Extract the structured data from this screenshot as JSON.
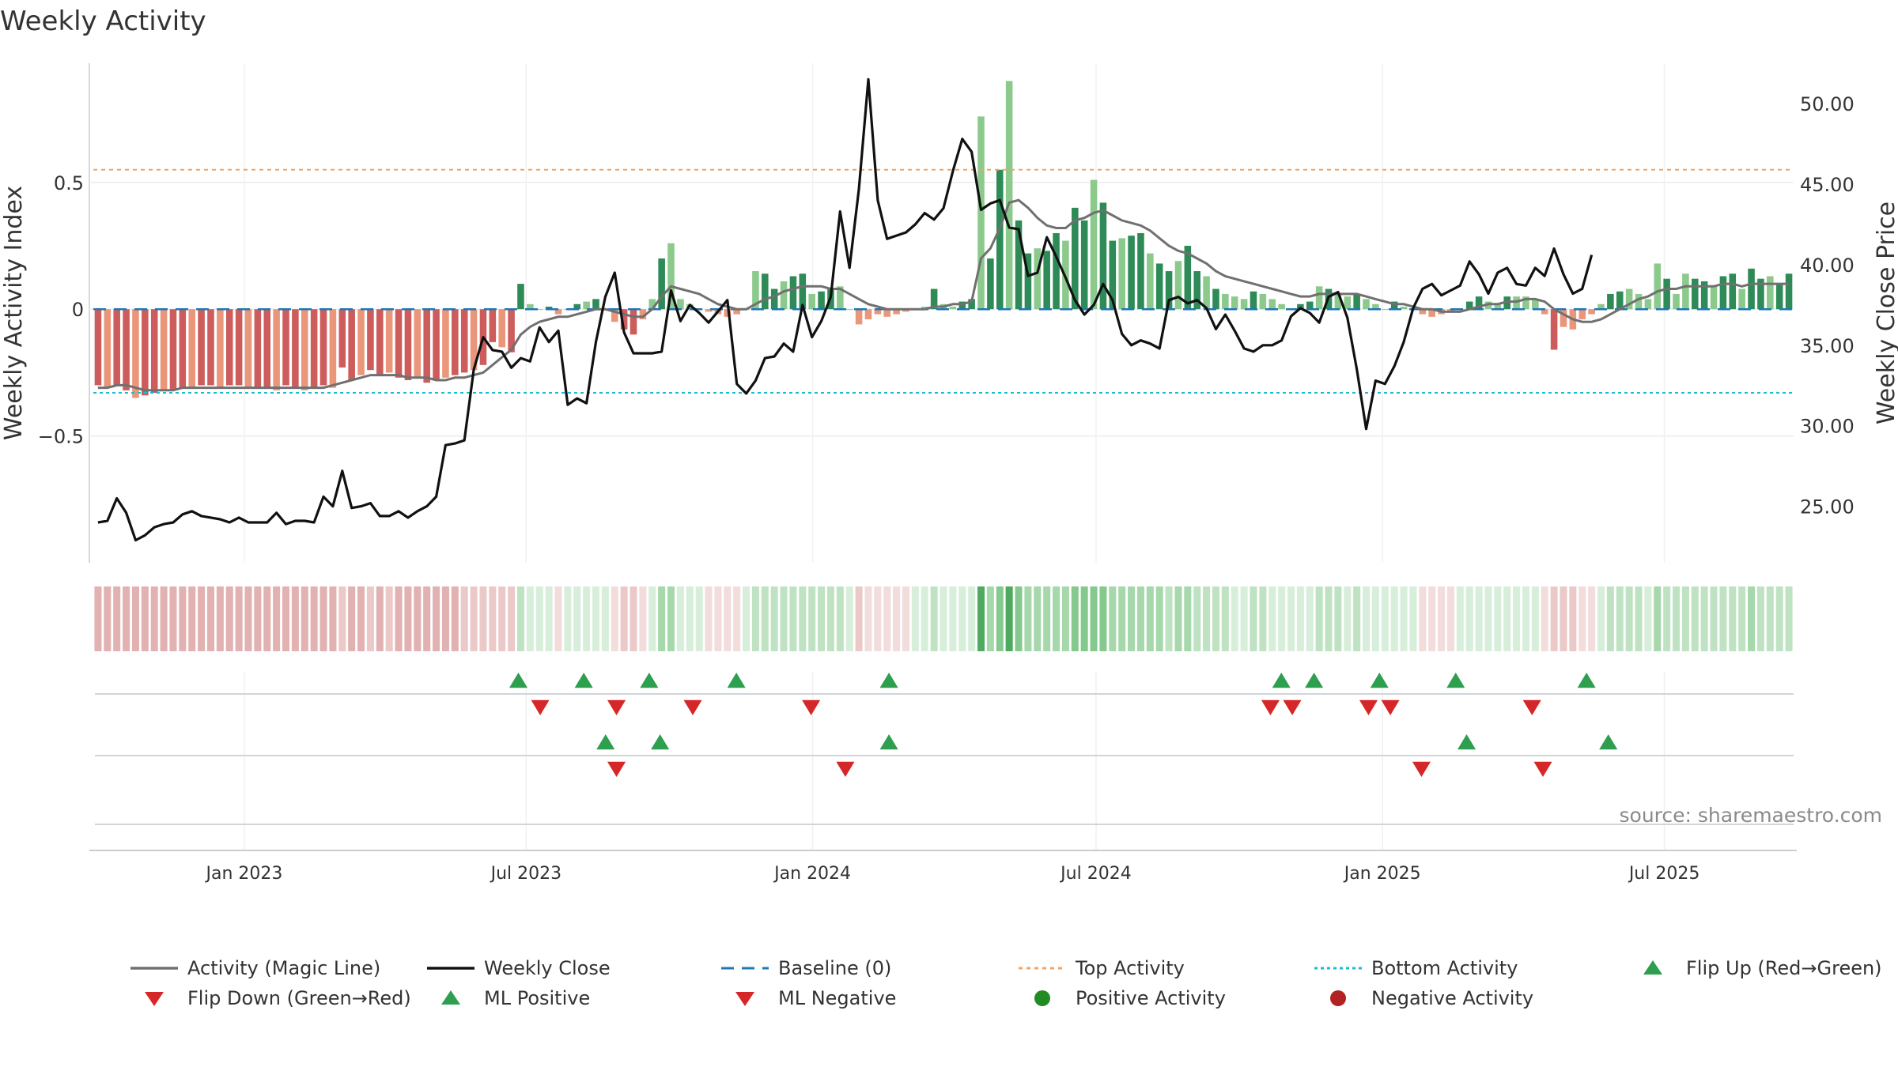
{
  "chart_data": {
    "type": "bar",
    "title": "Weekly Activity",
    "ylabel_left": "Weekly Activity Index",
    "ylabel_right": "Weekly Close Price",
    "source": "source: sharemaestro.com",
    "left_axis": {
      "ylim": [
        -1.0,
        0.97
      ],
      "ticks": [
        -0.5,
        0,
        0.5
      ],
      "tick_labels": [
        "−0.5",
        "0",
        "0.5"
      ]
    },
    "right_axis": {
      "ylim": [
        21.5,
        52.5
      ],
      "ticks": [
        25,
        30,
        35,
        40,
        45,
        50
      ],
      "tick_labels": [
        "25.00",
        "30.00",
        "35.00",
        "40.00",
        "45.00",
        "50.00"
      ]
    },
    "x_axis": {
      "start": "2022-09-26",
      "end": "2025-09-22",
      "ticks": [
        "2023-01-01",
        "2023-07-01",
        "2024-01-01",
        "2024-07-01",
        "2025-01-01",
        "2025-07-01"
      ],
      "tick_labels": [
        "Jan 2023",
        "Jul 2023",
        "Jan 2024",
        "Jul 2024",
        "Jan 2025",
        "Jul 2025"
      ]
    },
    "reference_lines": {
      "baseline": 0,
      "top_activity": 0.55,
      "bottom_activity": -0.33
    },
    "weeks": {
      "start": "2022-09-26",
      "activity": [
        -0.3,
        -0.31,
        -0.3,
        -0.32,
        -0.35,
        -0.34,
        -0.33,
        -0.32,
        -0.32,
        -0.31,
        -0.31,
        -0.3,
        -0.3,
        -0.31,
        -0.3,
        -0.3,
        -0.31,
        -0.31,
        -0.31,
        -0.32,
        -0.3,
        -0.31,
        -0.32,
        -0.31,
        -0.3,
        -0.31,
        -0.23,
        -0.28,
        -0.26,
        -0.24,
        -0.26,
        -0.25,
        -0.27,
        -0.28,
        -0.27,
        -0.29,
        -0.28,
        -0.27,
        -0.26,
        -0.25,
        -0.24,
        -0.22,
        -0.13,
        -0.15,
        -0.17,
        0.1,
        0.02,
        0.0,
        0.01,
        -0.02,
        0.0,
        0.02,
        0.03,
        0.04,
        0.0,
        -0.05,
        -0.08,
        -0.1,
        -0.04,
        0.04,
        0.2,
        0.26,
        0.04,
        0.02,
        0.0,
        -0.01,
        -0.02,
        -0.03,
        -0.02,
        0.0,
        0.15,
        0.14,
        0.08,
        0.11,
        0.13,
        0.14,
        0.06,
        0.07,
        0.08,
        0.09,
        0.0,
        -0.06,
        -0.04,
        -0.02,
        -0.03,
        -0.02,
        -0.01,
        0.0,
        0.01,
        0.08,
        0.02,
        0.01,
        0.03,
        0.04,
        0.76,
        0.2,
        0.55,
        0.9,
        0.35,
        0.22,
        0.24,
        0.23,
        0.3,
        0.27,
        0.4,
        0.35,
        0.51,
        0.42,
        0.27,
        0.28,
        0.29,
        0.3,
        0.22,
        0.18,
        0.15,
        0.19,
        0.25,
        0.15,
        0.13,
        0.08,
        0.06,
        0.05,
        0.04,
        0.07,
        0.06,
        0.04,
        0.02,
        0.0,
        0.02,
        0.03,
        0.09,
        0.08,
        0.06,
        0.05,
        0.06,
        0.04,
        0.02,
        0.0,
        0.03,
        0.01,
        0.0,
        -0.02,
        -0.03,
        -0.02,
        -0.01,
        0.0,
        0.03,
        0.05,
        0.03,
        0.02,
        0.05,
        0.05,
        0.05,
        0.04,
        -0.02,
        -0.16,
        -0.07,
        -0.08,
        -0.04,
        -0.02,
        0.02,
        0.06,
        0.07,
        0.08,
        0.06,
        0.04,
        0.18,
        0.12,
        0.06,
        0.14,
        0.12,
        0.11,
        0.09,
        0.13,
        0.14,
        0.08,
        0.16,
        0.12,
        0.13,
        0.1,
        0.14
      ],
      "close": [
        24.0,
        24.1,
        25.5,
        24.6,
        22.9,
        23.2,
        23.7,
        23.9,
        24.0,
        24.5,
        24.7,
        24.4,
        24.3,
        24.2,
        24.0,
        24.3,
        24.0,
        24.0,
        24.0,
        24.6,
        23.9,
        24.1,
        24.1,
        24.0,
        25.6,
        25.0,
        27.2,
        24.9,
        25.0,
        25.2,
        24.4,
        24.4,
        24.7,
        24.3,
        24.7,
        25.0,
        25.6,
        28.8,
        28.9,
        29.1,
        33.5,
        35.5,
        34.7,
        34.6,
        33.6,
        34.2,
        34.0,
        36.1,
        35.2,
        35.9,
        31.3,
        31.7,
        31.4,
        35.2,
        38.0,
        39.5,
        35.8,
        34.5,
        34.5,
        34.5,
        34.6,
        38.4,
        36.5,
        37.5,
        37.0,
        36.4,
        37.1,
        37.8,
        32.6,
        32.0,
        32.8,
        34.2,
        34.3,
        35.1,
        34.6,
        37.5,
        35.5,
        36.5,
        38.0,
        43.3,
        39.8,
        44.7,
        51.5,
        44.0,
        41.6,
        41.8,
        42.0,
        42.5,
        43.2,
        42.8,
        43.5,
        45.8,
        47.8,
        47.0,
        43.4,
        43.8,
        44.0,
        42.3,
        42.2,
        39.3,
        39.5,
        41.7,
        40.5,
        39.2,
        37.8,
        36.9,
        37.5,
        38.8,
        37.8,
        35.7,
        35.0,
        35.3,
        35.1,
        34.8,
        37.8,
        38.0,
        37.6,
        37.8,
        37.3,
        36.0,
        36.9,
        35.9,
        34.8,
        34.6,
        35.0,
        35.0,
        35.3,
        36.8,
        37.3,
        37.0,
        36.4,
        38.0,
        38.3,
        36.7,
        33.5,
        29.8,
        32.8,
        32.6,
        33.7,
        35.2,
        37.3,
        38.5,
        38.8,
        38.1,
        38.4,
        38.7,
        40.2,
        39.4,
        38.2,
        39.5,
        39.8,
        38.8,
        38.7,
        39.8,
        39.3,
        41.0,
        39.4,
        38.2,
        38.5,
        40.6
      ],
      "magic": [
        -0.31,
        -0.31,
        -0.3,
        -0.3,
        -0.31,
        -0.32,
        -0.32,
        -0.32,
        -0.32,
        -0.31,
        -0.31,
        -0.31,
        -0.31,
        -0.31,
        -0.31,
        -0.31,
        -0.31,
        -0.31,
        -0.31,
        -0.31,
        -0.31,
        -0.31,
        -0.31,
        -0.31,
        -0.31,
        -0.3,
        -0.29,
        -0.28,
        -0.27,
        -0.26,
        -0.26,
        -0.26,
        -0.26,
        -0.27,
        -0.27,
        -0.27,
        -0.28,
        -0.28,
        -0.27,
        -0.27,
        -0.26,
        -0.25,
        -0.22,
        -0.19,
        -0.16,
        -0.1,
        -0.07,
        -0.05,
        -0.04,
        -0.03,
        -0.03,
        -0.02,
        -0.01,
        0.0,
        0.0,
        -0.01,
        -0.02,
        -0.03,
        -0.03,
        0.0,
        0.05,
        0.09,
        0.08,
        0.07,
        0.06,
        0.04,
        0.02,
        0.01,
        0.0,
        0.0,
        0.02,
        0.04,
        0.05,
        0.07,
        0.08,
        0.09,
        0.09,
        0.09,
        0.08,
        0.08,
        0.06,
        0.04,
        0.02,
        0.01,
        0.0,
        0.0,
        0.0,
        0.0,
        0.0,
        0.01,
        0.01,
        0.02,
        0.02,
        0.03,
        0.2,
        0.24,
        0.32,
        0.42,
        0.43,
        0.4,
        0.36,
        0.33,
        0.32,
        0.32,
        0.35,
        0.36,
        0.38,
        0.39,
        0.37,
        0.35,
        0.34,
        0.33,
        0.31,
        0.28,
        0.25,
        0.23,
        0.22,
        0.2,
        0.18,
        0.15,
        0.13,
        0.12,
        0.11,
        0.1,
        0.09,
        0.08,
        0.07,
        0.06,
        0.05,
        0.05,
        0.06,
        0.06,
        0.06,
        0.06,
        0.06,
        0.05,
        0.04,
        0.03,
        0.02,
        0.02,
        0.01,
        0.0,
        0.0,
        -0.01,
        -0.01,
        -0.01,
        0.0,
        0.01,
        0.02,
        0.02,
        0.03,
        0.03,
        0.04,
        0.04,
        0.03,
        0.0,
        -0.02,
        -0.04,
        -0.05,
        -0.05,
        -0.04,
        -0.02,
        0.0,
        0.02,
        0.04,
        0.05,
        0.07,
        0.08,
        0.08,
        0.09,
        0.09,
        0.09,
        0.09,
        0.1,
        0.1,
        0.09,
        0.1,
        0.1,
        0.1,
        0.1,
        0.1
      ]
    },
    "flip_up_markers": [
      "2023-06-26",
      "2023-08-07",
      "2023-09-18",
      "2023-11-13",
      "2024-02-19",
      "2024-10-28",
      "2024-11-18",
      "2024-12-30",
      "2025-02-17",
      "2025-05-12"
    ],
    "flip_down_markers": [
      "2023-07-10",
      "2023-08-28",
      "2023-10-16",
      "2023-12-31",
      "2024-10-21",
      "2024-11-04",
      "2024-12-23",
      "2025-01-06",
      "2025-04-07"
    ],
    "ml_positive_markers": [
      "2023-08-21",
      "2023-09-25",
      "2024-02-19",
      "2025-02-24",
      "2025-05-26"
    ],
    "ml_negative_markers": [
      "2023-08-28",
      "2024-01-22",
      "2025-01-26",
      "2025-04-14"
    ],
    "legend": [
      "Activity (Magic Line)",
      "Weekly Close",
      "Baseline (0)",
      "Top Activity",
      "Bottom Activity",
      "Flip Up (Red→Green)",
      "Flip Down (Green→Red)",
      "ML Positive",
      "ML Negative",
      "Positive Activity",
      "Negative Activity"
    ],
    "colors": {
      "strong_green": "#2e8b57",
      "light_green": "#8cc98c",
      "strong_red": "#cd5c5c",
      "light_red": "#e9967a",
      "magic": "#707070",
      "close": "#111111",
      "baseline": "#1f77b4",
      "top": "#f4a460",
      "bottom": "#17becf",
      "flip_up": "#2e9e4f",
      "flip_down": "#d62728",
      "pos_dot": "#228b22",
      "neg_dot": "#b22222"
    }
  }
}
